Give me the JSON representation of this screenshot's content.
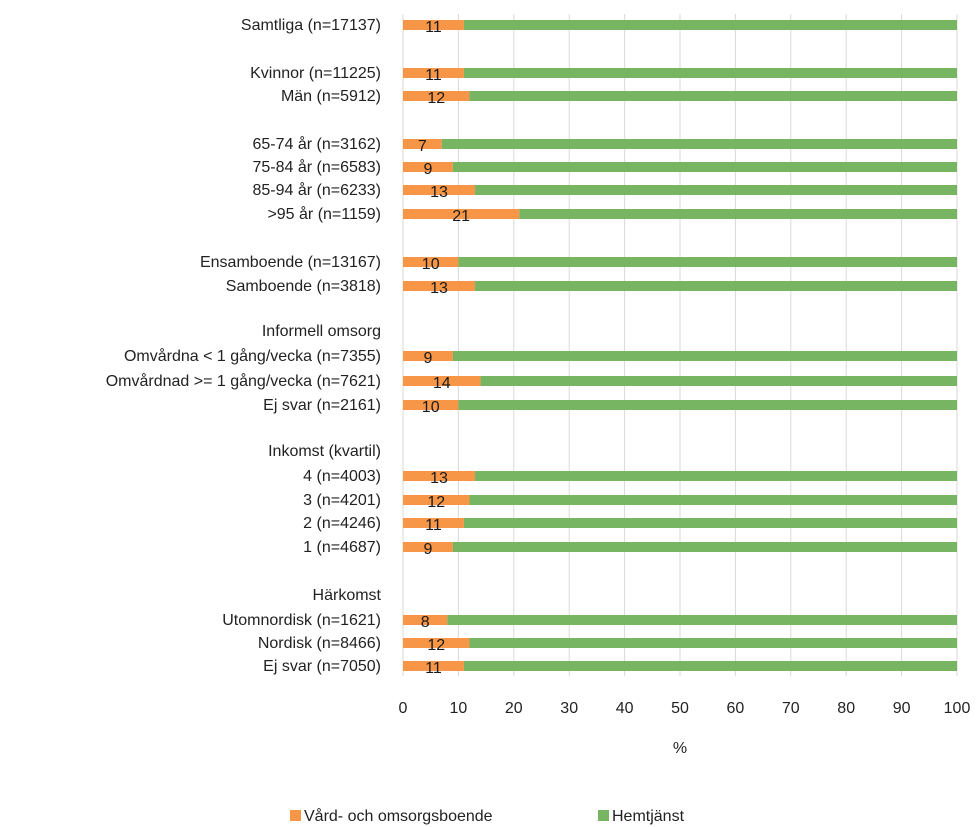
{
  "chart_data": {
    "type": "bar",
    "orientation": "horizontal",
    "stacked": "percent",
    "xlabel": "%",
    "xlim": [
      0,
      100
    ],
    "xticks": [
      0,
      10,
      20,
      30,
      40,
      50,
      60,
      70,
      80,
      90,
      100
    ],
    "grid": true,
    "legend_position": "bottom",
    "series": [
      {
        "name": "Vård- och omsorgsboende",
        "color": "#F79646"
      },
      {
        "name": "Hemtjänst",
        "color": "#77B563"
      }
    ],
    "rows": [
      {
        "label": "Samtliga (n=17137)",
        "value": 11
      },
      {
        "label": "Kvinnor (n=11225)",
        "value": 11
      },
      {
        "label": "Män (n=5912)",
        "value": 12
      },
      {
        "label": "65-74 år (n=3162)",
        "value": 7
      },
      {
        "label": "75-84 år (n=6583)",
        "value": 9
      },
      {
        "label": "85-94 år (n=6233)",
        "value": 13
      },
      {
        "label": ">95 år (n=1159)",
        "value": 21
      },
      {
        "label": "Ensamboende (n=13167)",
        "value": 10
      },
      {
        "label": "Samboende (n=3818)",
        "value": 13
      },
      {
        "label": "Informell omsorg",
        "value": null
      },
      {
        "label": "Omvårdna < 1 gång/vecka (n=7355)",
        "value": 9
      },
      {
        "label": "Omvårdnad >= 1 gång/vecka (n=7621)",
        "value": 14
      },
      {
        "label": "Ej svar (n=2161)",
        "value": 10
      },
      {
        "label": "Inkomst (kvartil)",
        "value": null
      },
      {
        "label": "4 (n=4003)",
        "value": 13
      },
      {
        "label": "3 (n=4201)",
        "value": 12
      },
      {
        "label": "2 (n=4246)",
        "value": 11
      },
      {
        "label": "1 (n=4687)",
        "value": 9
      },
      {
        "label": "Härkomst",
        "value": null
      },
      {
        "label": "Utomnordisk (n=1621)",
        "value": 8
      },
      {
        "label": "Nordisk (n=8466)",
        "value": 12
      },
      {
        "label": "Ej svar (n=7050)",
        "value": 11
      }
    ]
  }
}
